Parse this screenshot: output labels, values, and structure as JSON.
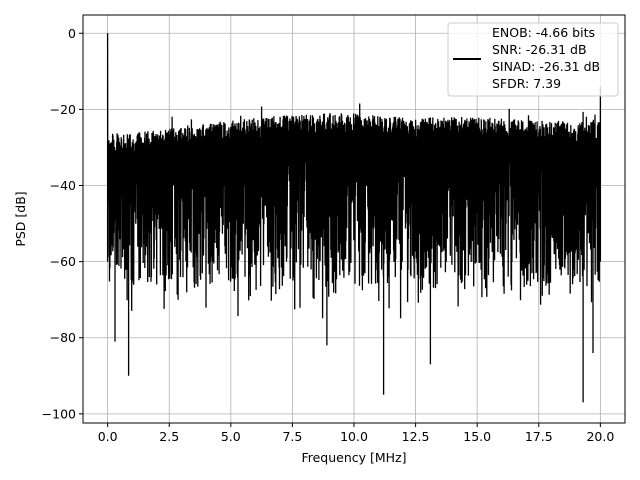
{
  "chart_data": {
    "type": "line",
    "title": "",
    "xlabel": "Frequency [MHz]",
    "ylabel": "PSD [dB]",
    "xlim": [
      -1.0,
      21.0
    ],
    "ylim": [
      -102.4,
      4.8
    ],
    "xticks": [
      0,
      2.5,
      5,
      7.5,
      10,
      12.5,
      15,
      17.5,
      20
    ],
    "xtick_labels": [
      "0.0",
      "2.5",
      "5.0",
      "7.5",
      "10.0",
      "12.5",
      "15.0",
      "17.5",
      "20.0"
    ],
    "yticks": [
      0,
      -20,
      -40,
      -60,
      -80,
      -100
    ],
    "ytick_labels": [
      "0",
      "−20",
      "−40",
      "−60",
      "−80",
      "−100"
    ],
    "grid": true,
    "legend": {
      "placement": "top-right",
      "entries": [
        "ENOB: -4.66 bits",
        "SNR: -26.31 dB",
        "SINAD: -26.31 dB",
        "SFDR: 7.39"
      ]
    },
    "series": [
      {
        "name": "PSD",
        "color": "#000000",
        "description_points": {
          "peak": {
            "x": 0.0,
            "y": 0.0
          },
          "end_spike": {
            "x": 20.0,
            "y": -14
          },
          "upper_envelope": {
            "x": [
              0,
              2.5,
              5,
              7.5,
              10,
              12.5,
              15,
              17.5,
              20
            ],
            "y": [
              -27,
              -25,
              -23,
              -21,
              -21,
              -22,
              -22,
              -23,
              -23
            ]
          },
          "lower_bulk": -65,
          "deep_dips": [
            {
              "x": 0.85,
              "y": -90
            },
            {
              "x": 11.2,
              "y": -95
            },
            {
              "x": 13.1,
              "y": -87
            },
            {
              "x": 19.3,
              "y": -97
            },
            {
              "x": 19.7,
              "y": -84
            },
            {
              "x": 8.9,
              "y": -82
            },
            {
              "x": 0.3,
              "y": -81
            }
          ]
        }
      }
    ]
  }
}
